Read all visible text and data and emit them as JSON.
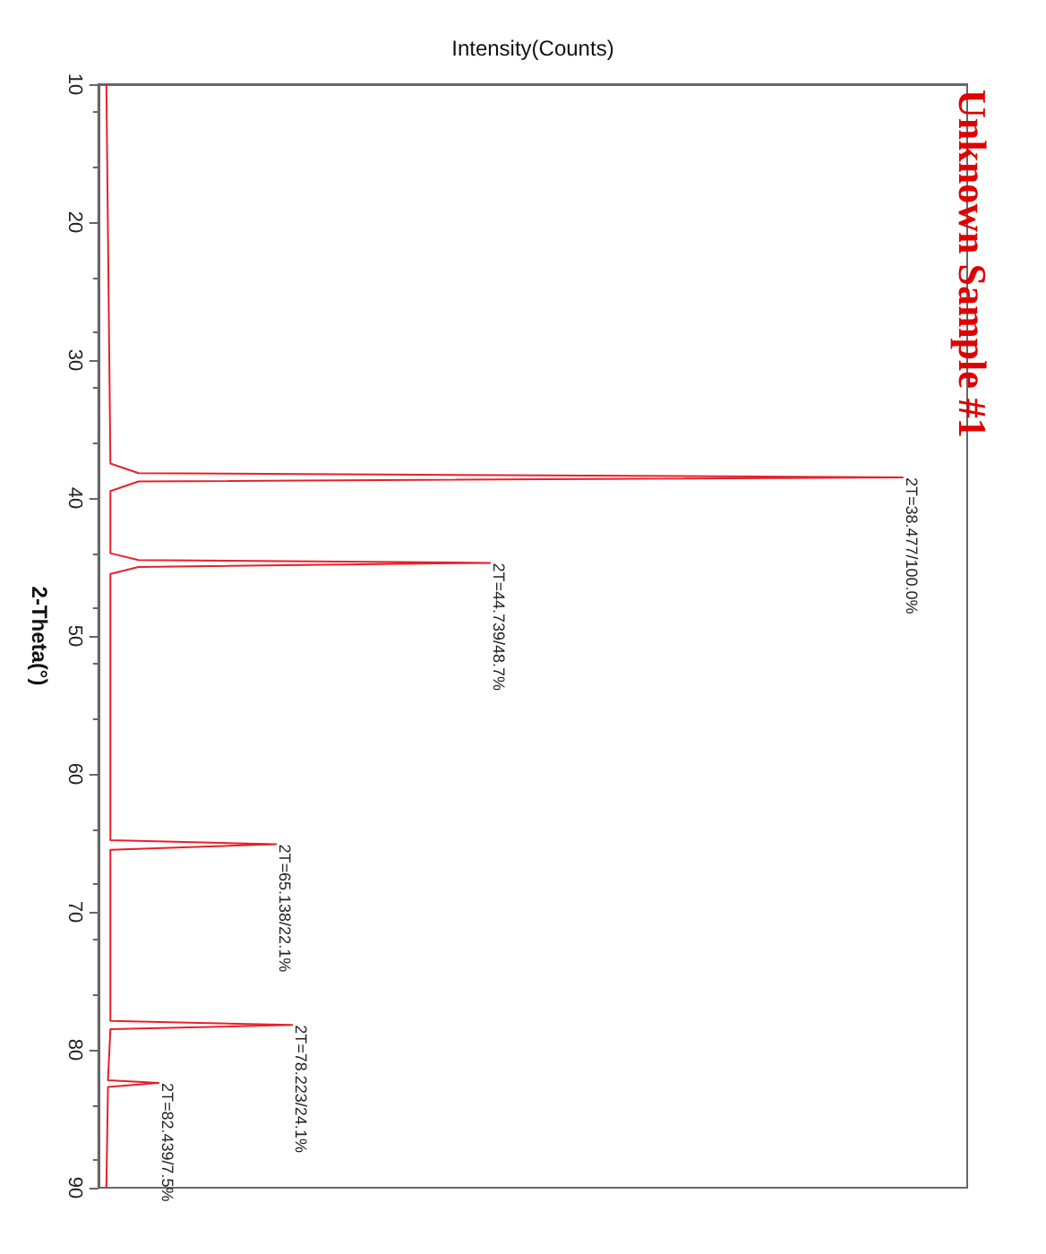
{
  "chart_data": {
    "type": "line",
    "orientation": "horizontal",
    "title": "Unknown Sample #1",
    "xlabel": "Intensity(Counts)",
    "ylabel": "2-Theta(°)",
    "x": [
      10,
      37.5,
      38.2,
      38.5,
      38.8,
      39.5,
      44,
      44.5,
      44.7,
      45,
      45.5,
      64.8,
      65.1,
      65.5,
      77.9,
      78.2,
      78.5,
      82.2,
      82.4,
      82.7,
      90
    ],
    "series": [
      {
        "color": "#e8202a",
        "values": [
          1,
          1.5,
          5,
          100,
          5,
          1.5,
          1.5,
          5,
          48.7,
          5,
          1.5,
          1.5,
          22.1,
          1.5,
          1.5,
          24.1,
          1.5,
          1.2,
          7.5,
          1.2,
          1
        ],
        "value_labels": [
          null,
          null,
          null,
          "2T=38.477/100.0%",
          null,
          null,
          null,
          null,
          "2T=44.739/48.7%",
          null,
          null,
          null,
          "2T=65.138/22.1%",
          null,
          null,
          "2T=78.223/24.1%",
          null,
          null,
          "2T=82.439/7.5%",
          null,
          null
        ]
      }
    ],
    "ylim": [
      90,
      10
    ],
    "yticks": [
      10,
      20,
      30,
      40,
      50,
      60,
      70,
      80,
      90
    ],
    "tick_labels": "y",
    "grid": false,
    "marker": "none"
  }
}
